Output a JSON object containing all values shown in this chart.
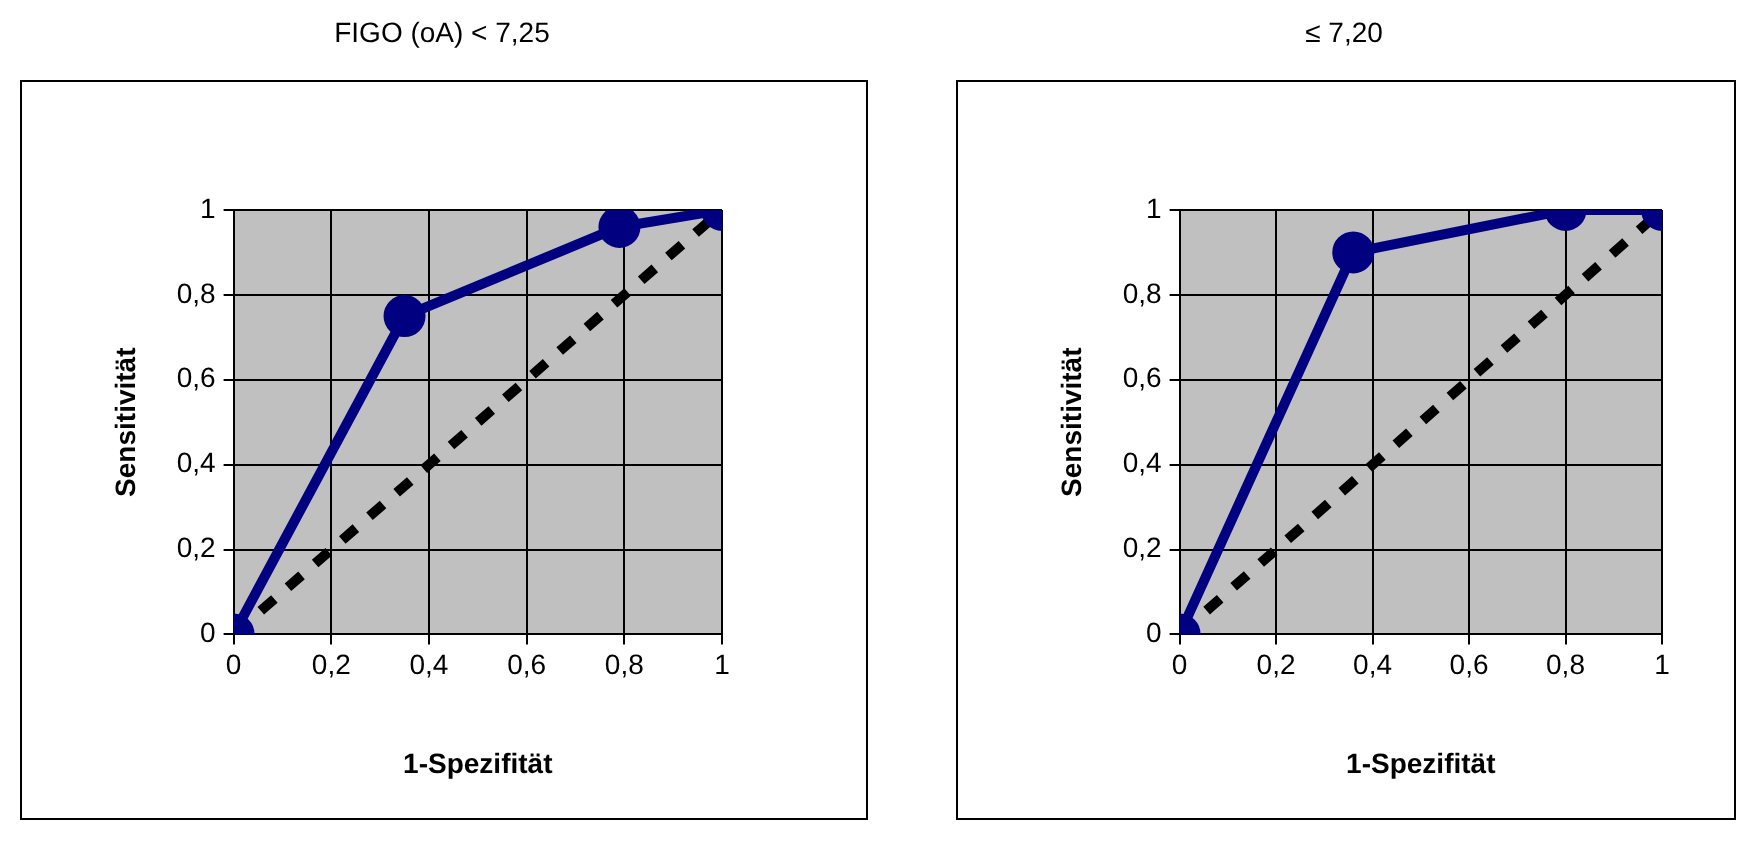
{
  "chart_data": [
    {
      "type": "line",
      "title": "FIGO (oA) < 7,25",
      "xlabel": "1-Spezifität",
      "ylabel": "Sensitivität",
      "xlim": [
        0,
        1
      ],
      "ylim": [
        0,
        1
      ],
      "xticks": [
        {
          "value": 0,
          "label": "0"
        },
        {
          "value": 0.2,
          "label": "0,2"
        },
        {
          "value": 0.4,
          "label": "0,4"
        },
        {
          "value": 0.6,
          "label": "0,6"
        },
        {
          "value": 0.8,
          "label": "0,8"
        },
        {
          "value": 1,
          "label": "1"
        }
      ],
      "yticks": [
        {
          "value": 0,
          "label": "0"
        },
        {
          "value": 0.2,
          "label": "0,2"
        },
        {
          "value": 0.4,
          "label": "0,4"
        },
        {
          "value": 0.6,
          "label": "0,6"
        },
        {
          "value": 0.8,
          "label": "0,8"
        },
        {
          "value": 1,
          "label": "1"
        }
      ],
      "grid": true,
      "legend": false,
      "series": [
        {
          "color": "#000080",
          "x": [
            0,
            0.35,
            0.79,
            1
          ],
          "values": [
            0,
            0.75,
            0.96,
            1
          ],
          "marker": "circle",
          "line_style": "solid"
        },
        {
          "color": "#000000",
          "x": [
            0,
            1
          ],
          "values": [
            0,
            1
          ],
          "marker": "none",
          "line_style": "dashed"
        }
      ]
    },
    {
      "type": "line",
      "title": "≤ 7,20",
      "xlabel": "1-Spezifität",
      "ylabel": "Sensitivität",
      "xlim": [
        0,
        1
      ],
      "ylim": [
        0,
        1
      ],
      "xticks": [
        {
          "value": 0,
          "label": "0"
        },
        {
          "value": 0.2,
          "label": "0,2"
        },
        {
          "value": 0.4,
          "label": "0,4"
        },
        {
          "value": 0.6,
          "label": "0,6"
        },
        {
          "value": 0.8,
          "label": "0,8"
        },
        {
          "value": 1,
          "label": "1"
        }
      ],
      "yticks": [
        {
          "value": 0,
          "label": "0"
        },
        {
          "value": 0.2,
          "label": "0,2"
        },
        {
          "value": 0.4,
          "label": "0,4"
        },
        {
          "value": 0.6,
          "label": "0,6"
        },
        {
          "value": 0.8,
          "label": "0,8"
        },
        {
          "value": 1,
          "label": "1"
        }
      ],
      "grid": true,
      "legend": false,
      "series": [
        {
          "color": "#000080",
          "x": [
            0,
            0.36,
            0.8,
            1
          ],
          "values": [
            0,
            0.9,
            1,
            1
          ],
          "marker": "circle",
          "line_style": "solid"
        },
        {
          "color": "#000000",
          "x": [
            0,
            1
          ],
          "values": [
            0,
            1
          ],
          "marker": "none",
          "line_style": "dashed"
        }
      ]
    }
  ]
}
